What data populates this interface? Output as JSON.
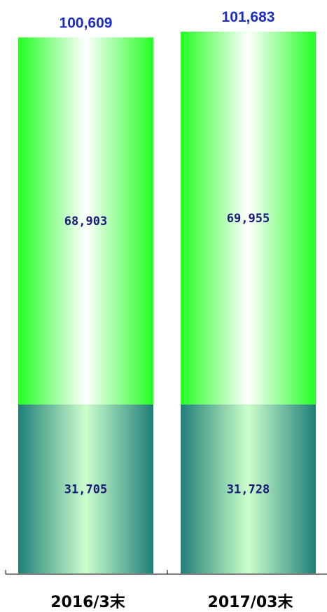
{
  "chart_data": {
    "type": "bar",
    "stacked": true,
    "categories": [
      "2016/3末",
      "2017/03末"
    ],
    "series": [
      {
        "values": [
          31705,
          31728
        ],
        "value_labels": [
          "31,705",
          "31,728"
        ]
      },
      {
        "values": [
          68903,
          69955
        ],
        "value_labels": [
          "68,903",
          "69,955"
        ]
      }
    ],
    "totals": [
      100609,
      101683
    ],
    "total_labels": [
      "100,609",
      "101,683"
    ],
    "colors": {
      "bottom_edge": "#1f7f78",
      "bottom_center": "#ccffcc",
      "top_edge": "#22ff22",
      "top_center": "#ffffff",
      "total_label": "#1c2ec2",
      "segment_label": "#1a1a7a",
      "axis": "#000000"
    },
    "grid": false,
    "legend": "none"
  }
}
